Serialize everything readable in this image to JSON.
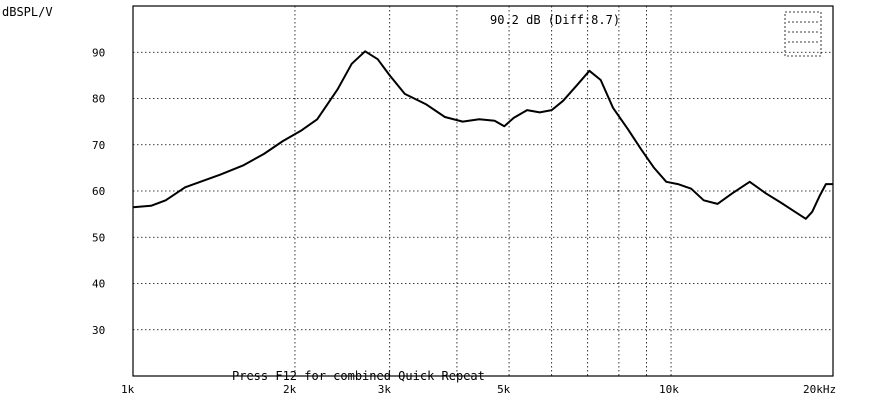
{
  "chart_data": {
    "type": "line",
    "ylabel": "dBSPL/V",
    "readout": "90.2 dB (Diff:8.7)",
    "footer_message": "Press F12 for combined Quick Repeat",
    "x_scale": "log",
    "xlim": [
      1000,
      20000
    ],
    "ylim": [
      20,
      100
    ],
    "grid": true,
    "y_ticks": [
      {
        "value": 90,
        "label": "90"
      },
      {
        "value": 80,
        "label": "80"
      },
      {
        "value": 70,
        "label": "70"
      },
      {
        "value": 60,
        "label": "60"
      },
      {
        "value": 50,
        "label": "50"
      },
      {
        "value": 40,
        "label": "40"
      },
      {
        "value": 30,
        "label": "30"
      }
    ],
    "x_ticks": [
      {
        "value": 1000,
        "label": "1k"
      },
      {
        "value": 2000,
        "label": "2k"
      },
      {
        "value": 3000,
        "label": "3k"
      },
      {
        "value": 5000,
        "label": "5k"
      },
      {
        "value": 10000,
        "label": "10k"
      },
      {
        "value": 20000,
        "label": "20kHz"
      }
    ],
    "x_grid": [
      2000,
      3000,
      4000,
      5000,
      6000,
      7000,
      8000,
      9000,
      10000,
      20000
    ],
    "series": [
      {
        "color": "#000000",
        "points": [
          [
            1000,
            56.5
          ],
          [
            1080,
            56.8
          ],
          [
            1150,
            58.0
          ],
          [
            1250,
            60.8
          ],
          [
            1350,
            62.2
          ],
          [
            1450,
            63.5
          ],
          [
            1600,
            65.5
          ],
          [
            1750,
            68.0
          ],
          [
            1900,
            70.8
          ],
          [
            2050,
            73.0
          ],
          [
            2200,
            75.5
          ],
          [
            2400,
            82.0
          ],
          [
            2550,
            87.5
          ],
          [
            2700,
            90.2
          ],
          [
            2850,
            88.5
          ],
          [
            3000,
            85.0
          ],
          [
            3200,
            81.0
          ],
          [
            3500,
            78.8
          ],
          [
            3800,
            76.0
          ],
          [
            4100,
            75.0
          ],
          [
            4400,
            75.5
          ],
          [
            4700,
            75.2
          ],
          [
            4900,
            74.0
          ],
          [
            5100,
            75.8
          ],
          [
            5400,
            77.5
          ],
          [
            5700,
            77.0
          ],
          [
            6000,
            77.5
          ],
          [
            6300,
            79.5
          ],
          [
            6700,
            83.0
          ],
          [
            7050,
            86.0
          ],
          [
            7400,
            84.0
          ],
          [
            7800,
            78.0
          ],
          [
            8300,
            73.5
          ],
          [
            8800,
            69.0
          ],
          [
            9300,
            65.0
          ],
          [
            9800,
            62.0
          ],
          [
            10300,
            61.5
          ],
          [
            10900,
            60.5
          ],
          [
            11500,
            58.0
          ],
          [
            12200,
            57.2
          ],
          [
            13000,
            59.5
          ],
          [
            14000,
            62.0
          ],
          [
            15000,
            59.5
          ],
          [
            16000,
            57.5
          ],
          [
            17000,
            55.5
          ],
          [
            17800,
            54.0
          ],
          [
            18300,
            55.5
          ],
          [
            18900,
            59.0
          ],
          [
            19400,
            61.5
          ],
          [
            20000,
            61.5
          ]
        ]
      }
    ]
  }
}
